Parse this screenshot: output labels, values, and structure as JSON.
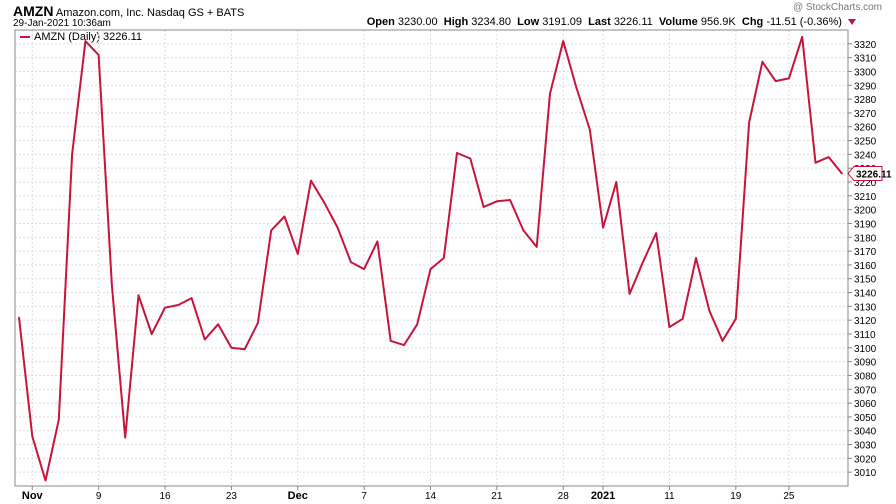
{
  "header": {
    "symbol": "AMZN",
    "company": "Amazon.com, Inc.",
    "exchange": "Nasdaq GS + BATS",
    "datetime": "29-Jan-2021 10:36am",
    "open_label": "Open",
    "open": "3230.00",
    "high_label": "High",
    "high": "3234.80",
    "low_label": "Low",
    "low": "3191.09",
    "last_label": "Last",
    "last": "3226.11",
    "volume_label": "Volume",
    "volume": "956.9K",
    "chg_label": "Chg",
    "chg": "-11.51 (-0.36%)",
    "watermark": "@ StockCharts.com"
  },
  "legend": {
    "label": "AMZN (Daily) 3226.11"
  },
  "colors": {
    "series": "#c8143c",
    "grid": "#dddddd",
    "axis": "#888888"
  },
  "chart_data": {
    "type": "line",
    "title": "AMZN",
    "series": [
      {
        "name": "AMZN (Daily)",
        "values": [
          3122,
          3036,
          3004,
          3048,
          3240,
          3322,
          3312,
          3145,
          3035,
          3138,
          3110,
          3129,
          3131,
          3136,
          3106,
          3117,
          3100,
          3099,
          3118,
          3185,
          3195,
          3168,
          3221,
          3205,
          3187,
          3162,
          3157,
          3177,
          3105,
          3102,
          3117,
          3157,
          3165,
          3241,
          3237,
          3202,
          3206,
          3207,
          3185,
          3173,
          3284,
          3322,
          3288,
          3258,
          3187,
          3220,
          3139,
          3162,
          3183,
          3115,
          3121,
          3165,
          3127,
          3105,
          3121,
          3263,
          3307,
          3293,
          3295,
          3325,
          3234,
          3238,
          3226.11
        ]
      }
    ],
    "x_tick_labels": [
      "Nov",
      "9",
      "16",
      "23",
      "Dec",
      "7",
      "14",
      "21",
      "28",
      "2021",
      "11",
      "19",
      "25"
    ],
    "x_tick_index": [
      1,
      6,
      11,
      16,
      21,
      26,
      31,
      36,
      41,
      44,
      49,
      54,
      58
    ],
    "bold_ticks": [
      "Nov",
      "Dec",
      "2021"
    ],
    "ylim": [
      3000,
      3330
    ],
    "y_ticks": [
      3010,
      3020,
      3030,
      3040,
      3050,
      3060,
      3070,
      3080,
      3090,
      3100,
      3110,
      3120,
      3130,
      3140,
      3150,
      3160,
      3170,
      3180,
      3190,
      3200,
      3210,
      3220,
      3230,
      3240,
      3250,
      3260,
      3270,
      3280,
      3290,
      3300,
      3310,
      3320
    ],
    "last_value_label": "3226.11",
    "grid": true
  }
}
